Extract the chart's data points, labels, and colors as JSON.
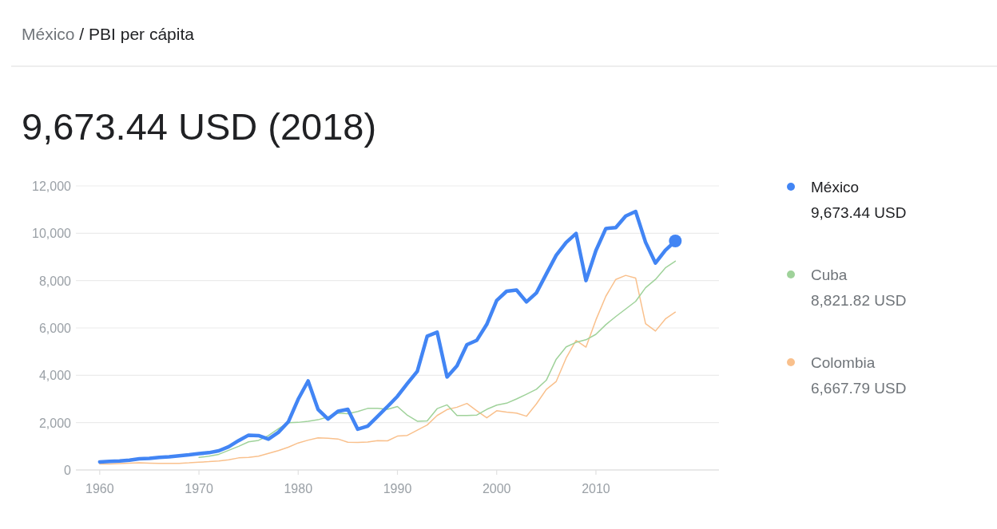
{
  "chart_data": {
    "type": "line",
    "title": "9,673.44 USD (2018)",
    "subtitle": "México / PBI per cápita",
    "xlim": [
      1957.6,
      2022.4
    ],
    "xticks": [
      1960,
      1970,
      1980,
      1990,
      2000,
      2010
    ],
    "ylim": [
      0,
      12000
    ],
    "yticks": [
      {
        "value": 0,
        "label": "0"
      },
      {
        "value": 2000,
        "label": "2,000"
      },
      {
        "value": 4000,
        "label": "4,000"
      },
      {
        "value": 6000,
        "label": "6,000"
      },
      {
        "value": 8000,
        "label": "8,000"
      },
      {
        "value": 10000,
        "label": "10,000"
      },
      {
        "value": 12000,
        "label": "12,000"
      }
    ],
    "grid": "y",
    "legend": "right",
    "line_style": "solid",
    "annotations": [
      "9,673.44 USD",
      "8,821.82 USD",
      "6,667.79 USD"
    ],
    "series": [
      {
        "name": "México",
        "color": "#4285f4",
        "x": [
          1960,
          1961,
          1962,
          1963,
          1964,
          1965,
          1966,
          1967,
          1968,
          1969,
          1970,
          1971,
          1972,
          1973,
          1974,
          1975,
          1976,
          1977,
          1978,
          1979,
          1980,
          1981,
          1982,
          1983,
          1984,
          1985,
          1986,
          1987,
          1988,
          1989,
          1990,
          1991,
          1992,
          1993,
          1994,
          1995,
          1996,
          1997,
          1998,
          1999,
          2000,
          2001,
          2002,
          2003,
          2004,
          2005,
          2006,
          2007,
          2008,
          2009,
          2010,
          2011,
          2012,
          2013,
          2014,
          2015,
          2016,
          2017,
          2018
        ],
        "values": [
          340,
          360,
          380,
          410,
          470,
          490,
          530,
          560,
          600,
          640,
          690,
          730,
          810,
          980,
          1240,
          1470,
          1450,
          1300,
          1590,
          2030,
          2990,
          3760,
          2560,
          2150,
          2480,
          2560,
          1720,
          1850,
          2260,
          2680,
          3110,
          3650,
          4170,
          5650,
          5820,
          3930,
          4400,
          5290,
          5480,
          6150,
          7160,
          7550,
          7600,
          7100,
          7480,
          8280,
          9070,
          9610,
          9990,
          8000,
          9270,
          10200,
          10240,
          10730,
          10920,
          9620,
          8740,
          9280,
          9673.44
        ]
      },
      {
        "name": "Cuba",
        "color": "#9fd29a",
        "x": [
          1970,
          1971,
          1972,
          1973,
          1974,
          1975,
          1976,
          1977,
          1978,
          1979,
          1980,
          1981,
          1982,
          1983,
          1984,
          1985,
          1986,
          1987,
          1988,
          1989,
          1990,
          1991,
          1992,
          1993,
          1994,
          1995,
          1996,
          1997,
          1998,
          1999,
          2000,
          2001,
          2002,
          2003,
          2004,
          2005,
          2006,
          2007,
          2008,
          2009,
          2010,
          2011,
          2012,
          2013,
          2014,
          2015,
          2016,
          2017,
          2018
        ],
        "values": [
          530,
          580,
          660,
          830,
          1000,
          1190,
          1250,
          1450,
          1740,
          2000,
          2010,
          2060,
          2120,
          2240,
          2400,
          2380,
          2470,
          2600,
          2600,
          2560,
          2680,
          2310,
          2060,
          2070,
          2590,
          2750,
          2300,
          2300,
          2320,
          2560,
          2740,
          2820,
          3000,
          3200,
          3410,
          3790,
          4680,
          5200,
          5390,
          5500,
          5730,
          6140,
          6480,
          6800,
          7120,
          7700,
          8050,
          8540,
          8821.82
        ]
      },
      {
        "name": "Colombia",
        "color": "#f9c08c",
        "x": [
          1960,
          1961,
          1962,
          1963,
          1964,
          1965,
          1966,
          1967,
          1968,
          1969,
          1970,
          1971,
          1972,
          1973,
          1974,
          1975,
          1976,
          1977,
          1978,
          1979,
          1980,
          1981,
          1982,
          1983,
          1984,
          1985,
          1986,
          1987,
          1988,
          1989,
          1990,
          1991,
          1992,
          1993,
          1994,
          1995,
          1996,
          1997,
          1998,
          1999,
          2000,
          2001,
          2002,
          2003,
          2004,
          2005,
          2006,
          2007,
          2008,
          2009,
          2010,
          2011,
          2012,
          2013,
          2014,
          2015,
          2016,
          2017,
          2018
        ],
        "values": [
          250,
          250,
          270,
          290,
          300,
          290,
          280,
          280,
          280,
          300,
          330,
          350,
          380,
          430,
          510,
          530,
          580,
          700,
          820,
          960,
          1140,
          1260,
          1360,
          1340,
          1310,
          1170,
          1160,
          1180,
          1240,
          1230,
          1430,
          1460,
          1680,
          1900,
          2300,
          2550,
          2650,
          2810,
          2500,
          2200,
          2500,
          2440,
          2400,
          2270,
          2790,
          3400,
          3740,
          4730,
          5470,
          5190,
          6340,
          7340,
          8050,
          8220,
          8110,
          6180,
          5870,
          6380,
          6667.79
        ]
      },
      {
        "type": "scatter",
        "marker": "circle",
        "color": "#4285f4",
        "x": [
          2018
        ],
        "values": [
          9673.44
        ]
      }
    ]
  }
}
